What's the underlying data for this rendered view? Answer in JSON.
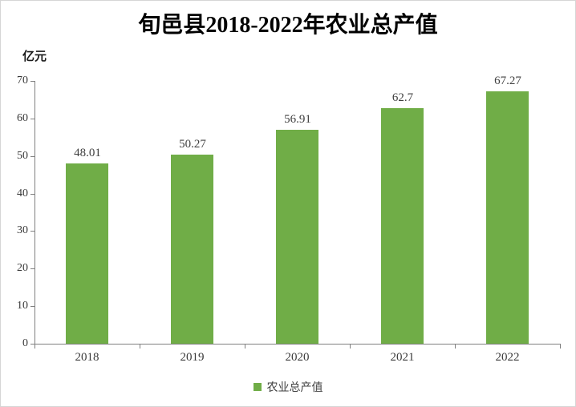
{
  "chart_data": {
    "type": "bar",
    "title": "旬邑县2018-2022年农业总产值",
    "ylabel": "亿元",
    "xlabel": "",
    "categories": [
      "2018",
      "2019",
      "2020",
      "2021",
      "2022"
    ],
    "series": [
      {
        "name": "农业总产值",
        "values": [
          48.01,
          50.27,
          56.91,
          62.7,
          67.27
        ],
        "value_labels": [
          "48.01",
          "50.27",
          "56.91",
          "62.7",
          "67.27"
        ]
      }
    ],
    "ylim": [
      0,
      70
    ],
    "yticks": [
      0,
      10,
      20,
      30,
      40,
      50,
      60,
      70
    ],
    "grid": false,
    "legend": {
      "label": "农业总产值",
      "position": "bottom"
    },
    "colors": {
      "bar": "#70AD47",
      "axis": "#808080",
      "tick_text": "#3a3a3a",
      "label_text": "#404040",
      "title_text": "#000000"
    }
  }
}
